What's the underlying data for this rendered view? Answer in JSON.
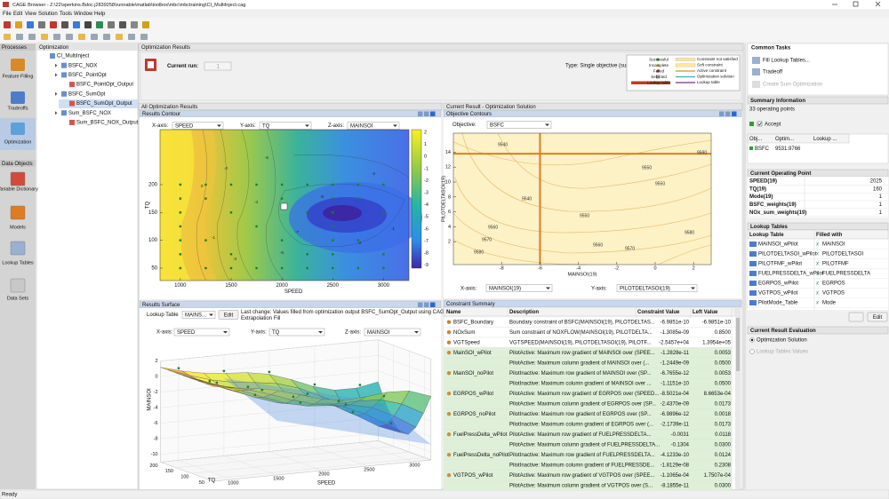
{
  "window": {
    "title": "CAGE Browser - Z:\\22\\sperkins.Bdoc.j2839258\\runnable\\matlab\\toolbox\\mbc\\mbctraining\\CI_MultiInject.cag"
  },
  "menu": [
    "File",
    "Edit",
    "View",
    "Solution",
    "Tools",
    "Window",
    "Help"
  ],
  "processes": {
    "title": "Processes",
    "items": [
      "Feature Filling",
      "Tradeoffs",
      "Optimization"
    ]
  },
  "data_objects": {
    "title": "Data Objects",
    "items": [
      "Variable Dictionary",
      "Models",
      "Lookup Tables",
      "Data Sets"
    ]
  },
  "tree": {
    "title": "Optimization",
    "nodes": [
      "CI_MultiInject",
      "BSFC_NOX",
      "BSFC_PointOpt",
      "BSFC_PointOpt_Output",
      "BSFC_SumOpt",
      "BSFC_SumOpt_Output",
      "Sum_BSFC_NOX",
      "Sum_BSFC_NOX_Output"
    ]
  },
  "results": {
    "title": "Optimization Results",
    "current_run_label": "Current run:",
    "current_run": "1",
    "type": "Type: Single objective (sum)",
    "legend_left": [
      "Successful",
      "Incomplete",
      "Failed",
      "Selected",
      "Lookup table"
    ],
    "legend_right": [
      "Constraint not satisfied",
      "Soft constraint",
      "Active constraint",
      "Optimization solution",
      "Lookup table"
    ]
  },
  "all_results": {
    "title": "All Optimization Results",
    "contour": {
      "title": "Results Contour",
      "x_label": "X-axis:",
      "x": "SPEED",
      "y_label": "Y-axis:",
      "y": "TQ",
      "z_label": "Z-axis:",
      "z": "MAINSOI",
      "xticks": [
        1000,
        1500,
        2000,
        2500,
        3000
      ],
      "yticks": [
        50,
        100,
        150,
        200
      ],
      "colorbar_ticks": [
        2,
        1,
        0,
        -1,
        -2,
        -3,
        -4,
        -5,
        -6,
        -7,
        -8,
        -9
      ],
      "contour_labels": [
        0,
        -1,
        -2,
        -3,
        -4,
        -5,
        -6,
        -7,
        -8,
        -3,
        -2,
        -1
      ],
      "xlabel": "SPEED",
      "ylabel": "TQ"
    },
    "surface": {
      "title": "Results Surface",
      "lookup_label": "Lookup Table",
      "lookup": "MAINS...",
      "edit": "Edit",
      "last_change": [
        "Last change: Values filled from optimization output BSFC_SumOpt_Output using CAGE",
        "Extrapolation Fill"
      ],
      "x_label": "X-axis:",
      "x": "SPEED",
      "y_label": "Y-axis:",
      "y": "TQ",
      "z_label": "Z-axis:",
      "z": "MAINSOI",
      "zticks": [
        2,
        0,
        -2,
        -4,
        -6,
        -8,
        -10
      ],
      "tq_ticks": [
        50,
        100,
        150,
        200
      ],
      "speed_ticks": [
        1000,
        1500,
        2000,
        2500,
        3000
      ],
      "zlabel": "MAINSOI",
      "tq_label": "TQ",
      "speed_label": "SPEED"
    }
  },
  "solution": {
    "title": "Current Result - Optimization Solution",
    "contour": {
      "title": "Objective Contours",
      "objective_label": "Objective:",
      "objective": "BSFC",
      "xticks": [
        -8,
        -6,
        -4,
        -2,
        0,
        2
      ],
      "yticks": [
        2,
        4,
        6,
        8,
        10,
        12,
        14
      ],
      "xlabel": "MAINSOI(19)",
      "ylabel": "PILOTDELTASOI(19)",
      "contour_labels": [
        9540,
        9540,
        9550,
        9550,
        9550,
        9560,
        9560,
        9570,
        9570,
        9580,
        9580,
        9590
      ],
      "x_label": "X-axis:",
      "x": "MAINSOI(19)",
      "y_label": "Y-axis:",
      "y": "PILOTDELTASOI(19)"
    }
  },
  "constraints": {
    "title": "Constraint Summary",
    "columns": [
      "Name",
      "Description",
      "Constraint Value",
      "Left Value"
    ],
    "rows": [
      {
        "name": "BSFC_Boundary",
        "description": "Boundary constraint of BSFC(MAINSOI(19), PILOTDELTAS...",
        "constraint_value": "-6.9851e-10",
        "left_value": "-6.9851e-10"
      },
      {
        "name": "NOxSum",
        "description": "Sum constraint of NOXFLOW(MAINSOI(19), PILOTDELTA...",
        "constraint_value": "-1.3085e-09",
        "left_value": "0.8500"
      },
      {
        "name": "VGTSpeed",
        "description": "VGTSPEED(MAINSOI(19), PILOTDELTASOI(19), PILOTF...",
        "constraint_value": "-2.5457e+04",
        "left_value": "1.3954e+05"
      },
      {
        "name": "MainSOI_wPilot",
        "description": "PilotActive: Maximum row gradient of MAINSOI over (SPEE...",
        "constraint_value": "-1.2828e-11",
        "left_value": "0.0053"
      },
      {
        "description": "PilotActive: Maximum column gradient of MAINSOI over (...",
        "constraint_value": "-1.2449e-09",
        "left_value": "0.0500"
      },
      {
        "name": "MainSOI_noPilot",
        "description": "PilotInactive: Maximum row gradient of MAINSOI over (SP...",
        "constraint_value": "-6.7655e-12",
        "left_value": "0.0053"
      },
      {
        "description": "PilotInactive: Maximum column gradient of MAINSOI over ...",
        "constraint_value": "-1.1151e-10",
        "left_value": "0.0500"
      },
      {
        "name": "EGRPOS_wPilot",
        "description": "PilotActive: Maximum row gradient of EGRPOS over (SPEED...",
        "constraint_value": "-8.5021e-04",
        "left_value": "8.6653e-04"
      },
      {
        "description": "PilotActive: Maximum column gradient of EGRPOS over (SP...",
        "constraint_value": "-2.4370e-09",
        "left_value": "0.0173"
      },
      {
        "name": "EGRPOS_noPilot",
        "description": "PilotInactive: Maximum row gradient of EGRPOS over (SP...",
        "constraint_value": "-6.9896e-12",
        "left_value": "0.0018"
      },
      {
        "description": "PilotInactive: Maximum column gradient of EGRPOS over (...",
        "constraint_value": "-2.1739e-11",
        "left_value": "0.0173"
      },
      {
        "name": "FuelPressDelta_wPilot",
        "description": "PilotActive: Maximum row gradient of FUELPRESSDELTA...",
        "constraint_value": "-0.0031",
        "left_value": "0.0118"
      },
      {
        "description": "PilotActive: Maximum column gradient of FUELPRESSDELTA...",
        "constraint_value": "-0.1304",
        "left_value": "0.0300"
      },
      {
        "name": "FuelPressDelta_noPilot",
        "description": "PilotInactive: Maximum row gradient of FUELPRESSDELTA...",
        "constraint_value": "-4.1233e-10",
        "left_value": "0.0124"
      },
      {
        "description": "PilotInactive: Maximum column gradient of FUELPRESSDE...",
        "constraint_value": "-1.8129e-08",
        "left_value": "0.2308"
      },
      {
        "name": "VGTPOS_wPilot",
        "description": "PilotActive: Maximum row gradient of VGTPOS over (SPEE...",
        "constraint_value": "-1.1065e-04",
        "left_value": "1.7507e-04"
      },
      {
        "description": "PilotActive: Maximum column gradient of VGTPOS over (S...",
        "constraint_value": "-8.1855e-11",
        "left_value": "0.0300"
      }
    ]
  },
  "sidebar": {
    "common_tasks": {
      "title": "Common Tasks",
      "items": [
        "Fill Lookup Tables...",
        "Tradeoff",
        "Create Sum Optimization"
      ]
    },
    "summary": {
      "title": "Summary Information",
      "points": "33 operating points",
      "accept": "Accept",
      "columns": [
        "Obj...",
        "Optim...",
        "Lookup ..."
      ],
      "row": [
        "BSFC",
        "9531.9766"
      ]
    },
    "operating_point": {
      "title": "Current Operating Point",
      "rows": [
        [
          "SPEED(19)",
          2025
        ],
        [
          "TQ(19)",
          160
        ],
        [
          "Mode(19)",
          1
        ],
        [
          "BSFC_weights(19)",
          1
        ],
        [
          "NOx_sum_weights(19)",
          1
        ]
      ]
    },
    "lookup_tables": {
      "title": "Lookup Tables",
      "columns": [
        "Lookup Table",
        "Filled with"
      ],
      "rows": [
        [
          "MAINSOI_wPilot",
          "MAINSOI"
        ],
        [
          "PILOTDELTASOI_wPilot",
          "PILOTDELTASOI"
        ],
        [
          "PILOTFMF_wPilot",
          "PILOTFMF"
        ],
        [
          "FUELPRESSDELTA_wPilot",
          "FUELPRESSDELTA"
        ],
        [
          "EGRPOS_wPilot",
          "EGRPOS"
        ],
        [
          "VGTPOS_wPilot",
          "VGTPOS"
        ],
        [
          "PilotMode_Table",
          "Mode"
        ]
      ],
      "edit": "Edit"
    },
    "evaluation": {
      "title": "Current Result Evaluation",
      "options": [
        "Optimization Solution",
        "Lookup Tables Values"
      ]
    }
  },
  "status": "Ready"
}
